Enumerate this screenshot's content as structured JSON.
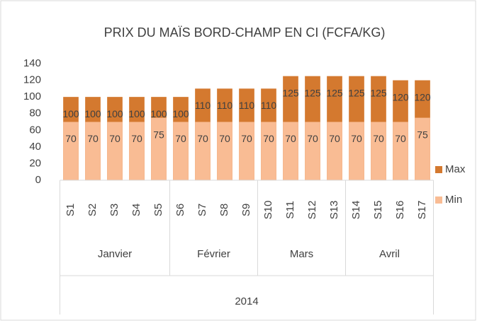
{
  "chart_data": {
    "type": "bar",
    "title": "PRIX DU MAÏS BORD-CHAMP EN CI (FCFA/KG)",
    "categories": [
      "S1",
      "S2",
      "S3",
      "S4",
      "S5",
      "S6",
      "S7",
      "S8",
      "S9",
      "S10",
      "S11",
      "S12",
      "S13",
      "S14",
      "S15",
      "S16",
      "S17"
    ],
    "category_groups": [
      {
        "label": "Janvier",
        "span": 5
      },
      {
        "label": "Février",
        "span": 4
      },
      {
        "label": "Mars",
        "span": 4
      },
      {
        "label": "Avril",
        "span": 4
      }
    ],
    "super_group": "2014",
    "series": [
      {
        "name": "Max",
        "color": "#d4792f",
        "values": [
          100,
          100,
          100,
          100,
          100,
          100,
          110,
          110,
          110,
          110,
          125,
          125,
          125,
          125,
          125,
          120,
          120
        ]
      },
      {
        "name": "Min",
        "color": "#f9bc94",
        "values": [
          70,
          70,
          70,
          70,
          75,
          70,
          70,
          70,
          70,
          70,
          70,
          70,
          70,
          70,
          70,
          70,
          75
        ]
      }
    ],
    "overlap": true,
    "ylim": [
      0,
      140
    ],
    "yticks": [
      0,
      20,
      40,
      60,
      80,
      100,
      120,
      140
    ],
    "grid": false,
    "legend": "right"
  }
}
